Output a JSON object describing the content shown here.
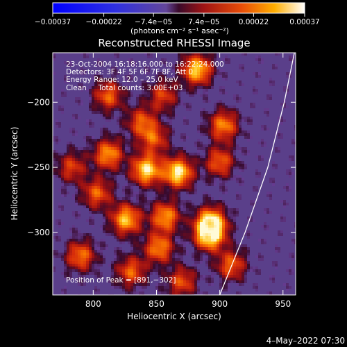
{
  "colorbar": {
    "tick_labels": [
      "−0.00037",
      "−0.00022",
      "−7.4e−05",
      "7.4e−05",
      "0.00022",
      "0.00037"
    ],
    "tick_values": [
      -0.00037,
      -0.00022,
      -7.4e-05,
      7.4e-05,
      0.00022,
      0.00037
    ],
    "range": [
      -0.00037,
      0.00037
    ],
    "unit_label": "(photons cm⁻² s⁻¹ asec⁻²)"
  },
  "chart_data": {
    "type": "heatmap",
    "title": "Reconstructed RHESSI Image",
    "xlabel": "Heliocentric X (arcsec)",
    "ylabel": "Heliocentric Y (arcsec)",
    "xlim": [
      768,
      960
    ],
    "ylim": [
      -348,
      -162
    ],
    "x_ticks": [
      800,
      850,
      900,
      950
    ],
    "x_tick_labels": [
      "800",
      "850",
      "900",
      "950"
    ],
    "y_ticks": [
      -200,
      -250,
      -300
    ],
    "y_tick_labels": [
      "−200",
      "−250",
      "−300"
    ],
    "info_lines": [
      "23-Oct-2004 16:18:16.000 to 16:22:24.000",
      "Detectors: 3F 4F 5F 6F 7F 8F, Att 0",
      "Energy Range: 12.0 – 25.0 keV",
      "Clean     Total counts: 3.00E+03"
    ],
    "peak_label": "Position of Peak = [891,−302]",
    "peak": [
      891,
      -302
    ],
    "limb_curve": [
      [
        900,
        -348
      ],
      [
        920,
        -300
      ],
      [
        938,
        -250
      ],
      [
        951,
        -200
      ],
      [
        959,
        -162
      ]
    ],
    "bright_sources": [
      {
        "x": 882,
        "y": -175,
        "v": 0.9
      },
      {
        "x": 812,
        "y": -195,
        "v": 0.6
      },
      {
        "x": 855,
        "y": -195,
        "v": 0.5
      },
      {
        "x": 838,
        "y": -215,
        "v": 0.55
      },
      {
        "x": 903,
        "y": -218,
        "v": 0.7
      },
      {
        "x": 848,
        "y": -228,
        "v": 0.55
      },
      {
        "x": 900,
        "y": -246,
        "v": 0.6
      },
      {
        "x": 812,
        "y": -240,
        "v": 0.75
      },
      {
        "x": 783,
        "y": -250,
        "v": 0.5
      },
      {
        "x": 842,
        "y": -252,
        "v": 0.95
      },
      {
        "x": 867,
        "y": -254,
        "v": 1.0
      },
      {
        "x": 803,
        "y": -270,
        "v": 0.6
      },
      {
        "x": 857,
        "y": -288,
        "v": 0.75
      },
      {
        "x": 826,
        "y": -290,
        "v": 0.85
      },
      {
        "x": 893,
        "y": -292,
        "v": 0.9
      },
      {
        "x": 892,
        "y": -302,
        "v": 1.0
      },
      {
        "x": 852,
        "y": -312,
        "v": 0.7
      },
      {
        "x": 790,
        "y": -318,
        "v": 0.65
      },
      {
        "x": 830,
        "y": -330,
        "v": 0.6
      },
      {
        "x": 870,
        "y": -338,
        "v": 0.55
      },
      {
        "x": 909,
        "y": -325,
        "v": 0.6
      }
    ]
  },
  "timestamp": "4–May–2022 07:30"
}
